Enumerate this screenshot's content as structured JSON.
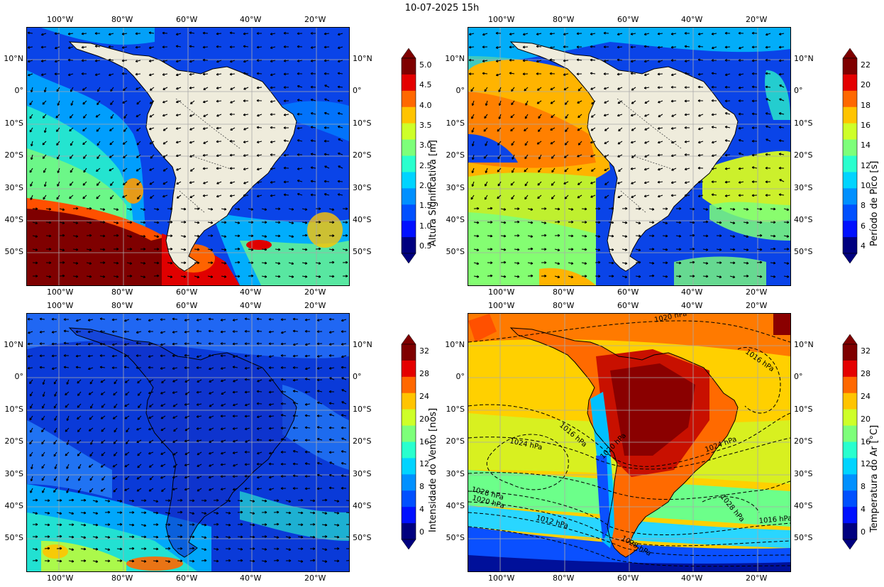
{
  "title": "10-07-2025 15h",
  "lon_ticks": [
    "100°W",
    "80°W",
    "60°W",
    "40°W",
    "20°W"
  ],
  "lat_ticks": [
    "10°N",
    "0°",
    "10°S",
    "20°S",
    "30°S",
    "40°S",
    "50°S"
  ],
  "panels": [
    {
      "id": "wave-height",
      "colorbar_label": "Altura Significativa [m]",
      "colorbar_ticks": [
        "5.0",
        "4.5",
        "4.0",
        "3.5",
        "3.0",
        "2.5",
        "2.0",
        "1.5",
        "1.0",
        "0.5"
      ],
      "range": [
        0.5,
        5.0
      ]
    },
    {
      "id": "peak-period",
      "colorbar_label": "Período de Pico [s]",
      "colorbar_ticks": [
        "22",
        "20",
        "18",
        "16",
        "14",
        "12",
        "10",
        "8",
        "6",
        "4"
      ],
      "range": [
        4,
        22
      ]
    },
    {
      "id": "wind-speed",
      "colorbar_label": "Intensidade do Vento [nós]",
      "colorbar_ticks": [
        "32",
        "28",
        "24",
        "20",
        "16",
        "12",
        "8",
        "4",
        "0"
      ],
      "range": [
        0,
        32
      ]
    },
    {
      "id": "air-temperature",
      "colorbar_label": "Temperatura do Ar [°C]",
      "colorbar_ticks": [
        "32",
        "28",
        "24",
        "20",
        "16",
        "12",
        "8",
        "4",
        "0"
      ],
      "range": [
        0,
        32
      ],
      "isobar_labels": [
        "1020 hPa",
        "1016 hPa",
        "1016 hPa",
        "1024 hPa",
        "1020 hPa",
        "1024 hPa",
        "1028 hPa",
        "1020 hPa",
        "1028 hPa",
        "1012 hPa",
        "1028 hPa",
        "1016 hPa"
      ]
    }
  ]
}
